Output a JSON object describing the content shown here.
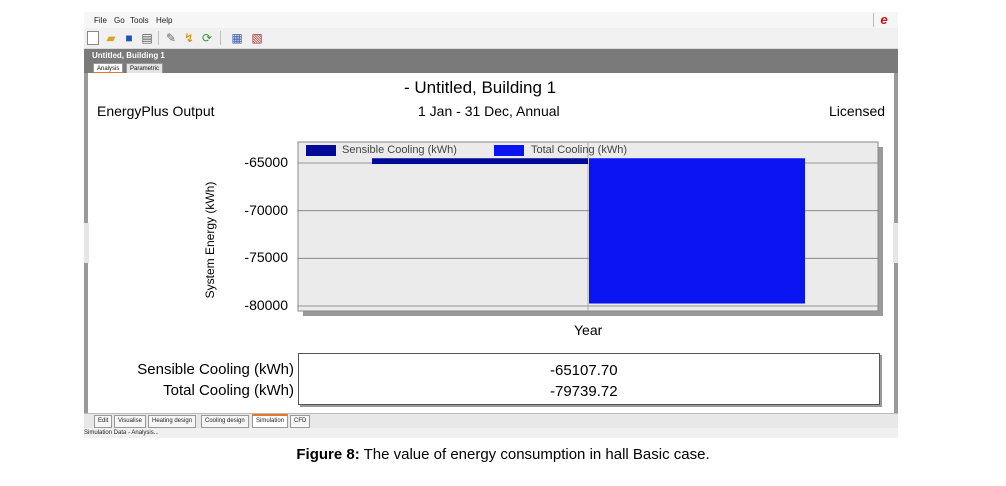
{
  "menu": {
    "items": [
      "File",
      "Go",
      "Tools",
      "Help"
    ]
  },
  "toolbar": {
    "icons": [
      "new-file-icon",
      "open-folder-icon",
      "save-icon",
      "print-icon",
      "wrench-icon",
      "chart-icon",
      "refresh-icon",
      "export-icon",
      "table-icon"
    ]
  },
  "building": {
    "title": "Untitled, Building 1",
    "tabs": [
      "Analysis",
      "Parametric"
    ],
    "active_tab": "Analysis"
  },
  "report": {
    "title": "- Untitled, Building 1",
    "left": "EnergyPlus Output",
    "center": "1 Jan - 31 Dec, Annual",
    "right": "Licensed"
  },
  "chart_data": {
    "type": "bar",
    "categories": [
      "Year"
    ],
    "series": [
      {
        "name": "Sensible Cooling (kWh)",
        "values": [
          -65107.7
        ],
        "color": "#000a96"
      },
      {
        "name": "Total Cooling (kWh)",
        "values": [
          -79739.72
        ],
        "color": "#0a14f0"
      }
    ],
    "xlabel": "Year",
    "ylabel": "System Energy (kWh)",
    "yticks": [
      -65000,
      -70000,
      -75000,
      -80000
    ],
    "ylim": [
      -80500,
      -64500
    ],
    "grid": true,
    "legend": "top"
  },
  "summary": {
    "rows": [
      {
        "label": "Sensible Cooling (kWh)",
        "value": "-65107.70"
      },
      {
        "label": "Total Cooling (kWh)",
        "value": "-79739.72"
      }
    ]
  },
  "bottom_tabs": {
    "items": [
      "Edit",
      "Visualise",
      "Heating design",
      "Cooling design",
      "Simulation",
      "CFD"
    ],
    "active": "Simulation"
  },
  "status": {
    "text": "Simulation Data - Analysis..."
  },
  "caption": {
    "label": "Figure 8:",
    "text": " The value of energy consumption in hall Basic case."
  }
}
